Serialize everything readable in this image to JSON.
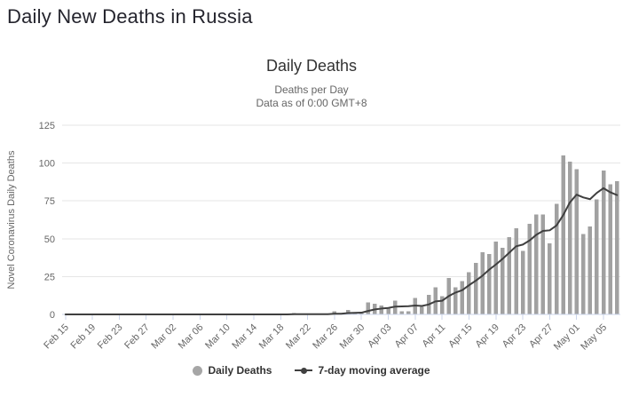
{
  "page": {
    "title": "Daily New Deaths in Russia"
  },
  "chart": {
    "title": "Daily Deaths",
    "subtitle": [
      "Deaths per Day",
      "Data as of 0:00 GMT+8"
    ],
    "legend_items": [
      {
        "label": "Daily Deaths",
        "marker": "circle",
        "color": "#a6a6a6"
      },
      {
        "label": "7-day moving average",
        "marker": "line",
        "color": "#404040"
      }
    ]
  },
  "chart_data": {
    "type": "bar",
    "title": "Daily Deaths",
    "subtitle": "Deaths per Day / Data as of 0:00 GMT+8",
    "xlabel": "",
    "ylabel": "Novel Coronavirus Daily Deaths",
    "ylim": [
      0,
      125
    ],
    "yticks": [
      0,
      25,
      50,
      75,
      100,
      125
    ],
    "grid": "horizontal-only",
    "legend_position": "bottom",
    "x_tick_interval": 4,
    "x_tick_labels": [
      "Feb 15",
      "Feb 19",
      "Feb 23",
      "Feb 27",
      "Mar 02",
      "Mar 06",
      "Mar 10",
      "Mar 14",
      "Mar 18",
      "Mar 22",
      "Mar 26",
      "Mar 30",
      "Apr 03",
      "Apr 07",
      "Apr 11",
      "Apr 15",
      "Apr 19",
      "Apr 23",
      "Apr 27",
      "May 01",
      "May 05"
    ],
    "categories": [
      "Feb 15",
      "Feb 16",
      "Feb 17",
      "Feb 18",
      "Feb 19",
      "Feb 20",
      "Feb 21",
      "Feb 22",
      "Feb 23",
      "Feb 24",
      "Feb 25",
      "Feb 26",
      "Feb 27",
      "Feb 28",
      "Feb 29",
      "Mar 01",
      "Mar 02",
      "Mar 03",
      "Mar 04",
      "Mar 05",
      "Mar 06",
      "Mar 07",
      "Mar 08",
      "Mar 09",
      "Mar 10",
      "Mar 11",
      "Mar 12",
      "Mar 13",
      "Mar 14",
      "Mar 15",
      "Mar 16",
      "Mar 17",
      "Mar 18",
      "Mar 19",
      "Mar 20",
      "Mar 21",
      "Mar 22",
      "Mar 23",
      "Mar 24",
      "Mar 25",
      "Mar 26",
      "Mar 27",
      "Mar 28",
      "Mar 29",
      "Mar 30",
      "Mar 31",
      "Apr 01",
      "Apr 02",
      "Apr 03",
      "Apr 04",
      "Apr 05",
      "Apr 06",
      "Apr 07",
      "Apr 08",
      "Apr 09",
      "Apr 10",
      "Apr 11",
      "Apr 12",
      "Apr 13",
      "Apr 14",
      "Apr 15",
      "Apr 16",
      "Apr 17",
      "Apr 18",
      "Apr 19",
      "Apr 20",
      "Apr 21",
      "Apr 22",
      "Apr 23",
      "Apr 24",
      "Apr 25",
      "Apr 26",
      "Apr 27",
      "Apr 28",
      "Apr 29",
      "Apr 30",
      "May 01",
      "May 02",
      "May 03",
      "May 04",
      "May 05",
      "May 06",
      "May 07"
    ],
    "series": [
      {
        "name": "Daily Deaths",
        "type": "bar",
        "color": "#a1a1a1",
        "values": [
          0,
          0,
          0,
          0,
          0,
          0,
          0,
          0,
          0,
          0,
          0,
          0,
          0,
          0,
          0,
          0,
          0,
          0,
          0,
          0,
          0,
          0,
          0,
          0,
          0,
          0,
          0,
          0,
          0,
          0,
          0,
          0,
          0,
          0,
          1,
          0,
          0,
          0,
          0,
          0,
          2,
          1,
          3,
          1,
          1,
          8,
          7,
          6,
          4,
          9,
          2,
          2,
          11,
          5,
          13,
          18,
          12,
          24,
          18,
          22,
          28,
          34,
          41,
          40,
          48,
          44,
          51,
          57,
          42,
          60,
          66,
          66,
          47,
          73,
          105,
          101,
          96,
          53,
          58,
          76,
          95,
          86,
          88
        ]
      },
      {
        "name": "7-day moving average",
        "type": "line",
        "color": "#3f3f3f",
        "derived_from": "trailing 7-day mean of Daily Deaths values"
      }
    ],
    "colors": {
      "grid": "#e6e6e6",
      "axis": "#ccd6eb",
      "tick_labels": "#666666"
    }
  }
}
